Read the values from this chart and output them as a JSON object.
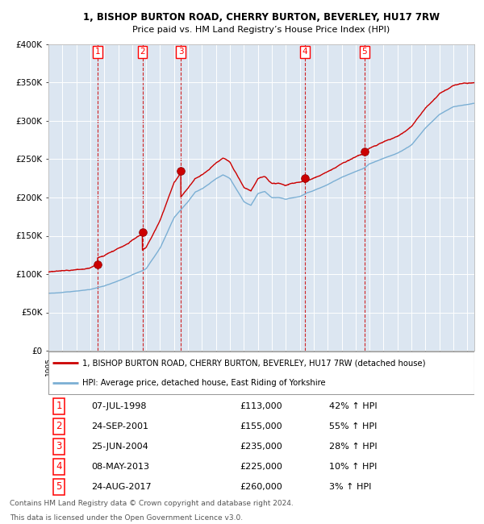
{
  "title": "1, BISHOP BURTON ROAD, CHERRY BURTON, BEVERLEY, HU17 7RW",
  "subtitle": "Price paid vs. HM Land Registry’s House Price Index (HPI)",
  "legend_line1": "1, BISHOP BURTON ROAD, CHERRY BURTON, BEVERLEY, HU17 7RW (detached house)",
  "legend_line2": "HPI: Average price, detached house, East Riding of Yorkshire",
  "footer_line1": "Contains HM Land Registry data © Crown copyright and database right 2024.",
  "footer_line2": "This data is licensed under the Open Government Licence v3.0.",
  "sales": [
    {
      "num": 1,
      "date_x": 1998.52,
      "price": 113000,
      "pct": "42%",
      "label": "07-JUL-1998",
      "price_label": "£113,000"
    },
    {
      "num": 2,
      "date_x": 2001.73,
      "price": 155000,
      "pct": "55%",
      "label": "24-SEP-2001",
      "price_label": "£155,000"
    },
    {
      "num": 3,
      "date_x": 2004.48,
      "price": 235000,
      "pct": "28%",
      "label": "25-JUN-2004",
      "price_label": "£235,000"
    },
    {
      "num": 4,
      "date_x": 2013.35,
      "price": 225000,
      "pct": "10%",
      "label": "08-MAY-2013",
      "price_label": "£225,000"
    },
    {
      "num": 5,
      "date_x": 2017.64,
      "price": 260000,
      "pct": "3%",
      "label": "24-AUG-2017",
      "price_label": "£260,000"
    }
  ],
  "hpi_line_color": "#7bafd4",
  "price_line_color": "#cc0000",
  "plot_bg_color": "#dce6f1",
  "ylim": [
    0,
    400000
  ],
  "yticks": [
    0,
    50000,
    100000,
    150000,
    200000,
    250000,
    300000,
    350000,
    400000
  ],
  "ylabel_fmt": [
    "£0",
    "£50K",
    "£100K",
    "£150K",
    "£200K",
    "£250K",
    "£300K",
    "£350K",
    "£400K"
  ],
  "xmin": 1995.0,
  "xmax": 2025.5
}
